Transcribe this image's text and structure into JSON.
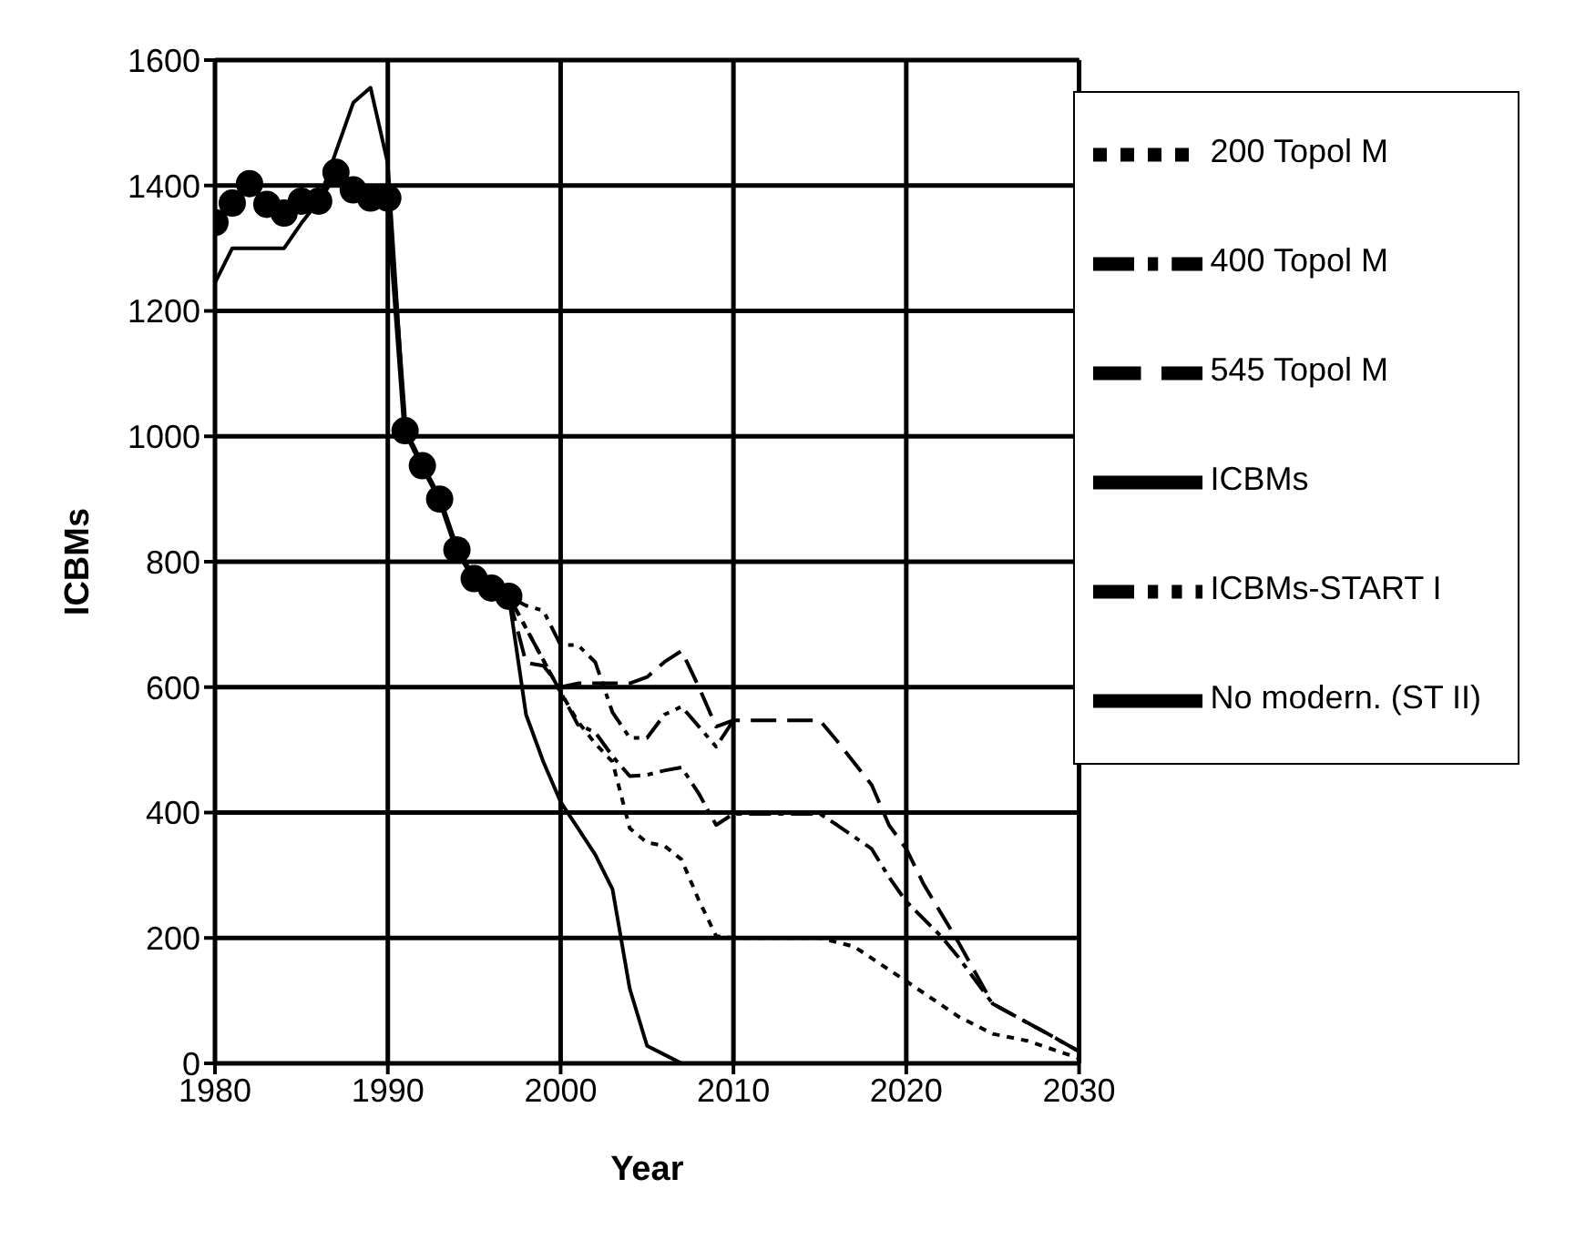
{
  "chart_data": {
    "type": "line",
    "xlabel": "Year",
    "ylabel": "ICBMs",
    "xlim": [
      1980,
      2030
    ],
    "xticks": [
      1980,
      1990,
      2000,
      2010,
      2020,
      2030
    ],
    "ylim": [
      0,
      1600
    ],
    "yticks": [
      0,
      200,
      400,
      600,
      800,
      1000,
      1200,
      1400,
      1600
    ],
    "grid": true,
    "legend": "top right",
    "series": [
      {
        "name": "ICBMs",
        "color": "#000000",
        "marker": "circle",
        "line_style": "solid",
        "x": [
          1980,
          1981,
          1982,
          1983,
          1984,
          1985,
          1986,
          1987,
          1988,
          1989,
          1990,
          1991,
          1992,
          1993,
          1994,
          1995,
          1996,
          1997
        ],
        "values": [
          1341,
          1372,
          1403,
          1370,
          1356,
          1375,
          1375,
          1421,
          1393,
          1380,
          1380,
          1009,
          953,
          900,
          819,
          773,
          758,
          745
        ]
      },
      {
        "name": "No modern. (ST II)",
        "color": "#000000",
        "marker": "none",
        "line_style": "solid",
        "x": [
          1980,
          1981,
          1982,
          1983,
          1984,
          1985,
          1986,
          1987,
          1988,
          1989,
          1990,
          1991,
          1992,
          1993,
          1994,
          1995,
          1996,
          1997,
          1998,
          1999,
          2000,
          2001,
          2002,
          2003,
          2004,
          2005,
          2006,
          2007
        ],
        "values": [
          1245,
          1300,
          1300,
          1300,
          1300,
          1340,
          1375,
          1454,
          1532,
          1556,
          1435,
          1009,
          953,
          900,
          819,
          773,
          758,
          745,
          556,
          481,
          417,
          375,
          333,
          278,
          119,
          28,
          14,
          0
        ]
      },
      {
        "name": "ICBMs-START I",
        "color": "#000000",
        "marker": "none",
        "line_style": "dashdotdot",
        "x": [
          1997,
          1998,
          1999,
          2000,
          2001,
          2002,
          2003,
          2004,
          2005,
          2006,
          2007,
          2008,
          2009,
          2010
        ],
        "values": [
          745,
          730,
          722,
          667,
          667,
          640,
          560,
          519,
          519,
          556,
          569,
          537,
          505,
          547
        ]
      },
      {
        "name": "545 Topol M",
        "color": "#000000",
        "marker": "none",
        "line_style": "dashed",
        "x": [
          1997,
          1998,
          1999,
          2000,
          2001,
          2002,
          2003,
          2004,
          2005,
          2006,
          2007,
          2008,
          2009,
          2010,
          2011,
          2015,
          2016,
          2018,
          2019,
          2020,
          2021,
          2023,
          2025,
          2028,
          2030
        ],
        "values": [
          745,
          639,
          634,
          600,
          606,
          606,
          606,
          606,
          616,
          640,
          658,
          600,
          537,
          547,
          547,
          547,
          514,
          444,
          380,
          342,
          286,
          194,
          95,
          50,
          19
        ]
      },
      {
        "name": "400 Topol M",
        "color": "#000000",
        "marker": "none",
        "line_style": "dashdot",
        "x": [
          1997,
          1998,
          1999,
          2000,
          2001,
          2002,
          2003,
          2004,
          2005,
          2006,
          2007,
          2008,
          2009,
          2010,
          2015,
          2016,
          2018,
          2019,
          2020,
          2022,
          2023,
          2025,
          2028,
          2030
        ],
        "values": [
          745,
          694,
          643,
          592,
          540,
          528,
          490,
          458,
          460,
          467,
          472,
          430,
          380,
          398,
          398,
          380,
          342,
          297,
          258,
          203,
          170,
          95,
          50,
          19
        ]
      },
      {
        "name": "200 Topol M",
        "color": "#000000",
        "marker": "none",
        "line_style": "dotted",
        "x": [
          1997,
          1998,
          1999,
          2000,
          2001,
          2002,
          2003,
          2004,
          2005,
          2006,
          2007,
          2008,
          2009,
          2010,
          2015,
          2017,
          2020,
          2023,
          2025,
          2027,
          2030
        ],
        "values": [
          745,
          694,
          643,
          592,
          545,
          510,
          481,
          375,
          352,
          347,
          325,
          260,
          203,
          200,
          200,
          186,
          131,
          75,
          47,
          36,
          8
        ]
      }
    ]
  }
}
